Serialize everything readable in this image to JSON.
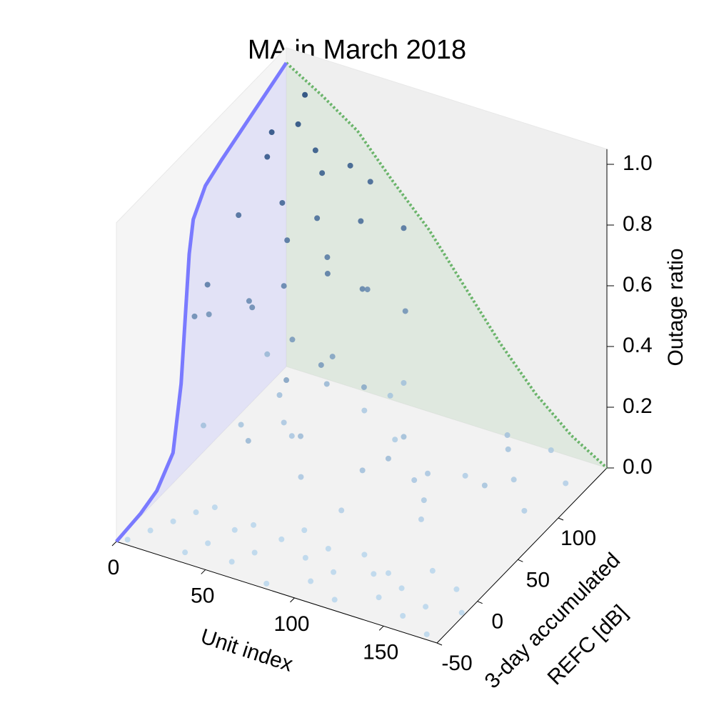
{
  "chart_data": {
    "type": "scatter3d",
    "title": "MA in March 2018",
    "xlabel": "Unit index",
    "ylabel": [
      "3-day accumulated",
      "REFC [dB]"
    ],
    "zlabel": "Outage ratio",
    "xlim": [
      0,
      180
    ],
    "ylim": [
      -50,
      160
    ],
    "zlim": [
      0,
      1.05
    ],
    "xticks": [
      0,
      50,
      100,
      150
    ],
    "yticks": [
      -50,
      0,
      50,
      100
    ],
    "zticks": [
      {
        "value": 0,
        "label": "0.0"
      },
      {
        "value": 0.2,
        "label": "0.2"
      },
      {
        "value": 0.4,
        "label": "0.4"
      },
      {
        "value": 0.6,
        "label": "0.6"
      },
      {
        "value": 0.8,
        "label": "0.8"
      },
      {
        "value": 1,
        "label": "1.0"
      }
    ],
    "colormap": [
      "#b9d6ec",
      "#08306b"
    ],
    "x": [
      4,
      10,
      16,
      22,
      28,
      34,
      40,
      46,
      52,
      58,
      64,
      70,
      76,
      82,
      88,
      94,
      100,
      106,
      112,
      118,
      124,
      130,
      136,
      142,
      148,
      154,
      160,
      166,
      172,
      178,
      8,
      20,
      35,
      50,
      62,
      75,
      90,
      105,
      118,
      130,
      145,
      160,
      12,
      28,
      44,
      58,
      72,
      86,
      100,
      115,
      128,
      140,
      155,
      170,
      40,
      65,
      95,
      125,
      150,
      175,
      2,
      5,
      10,
      15,
      20,
      25,
      30,
      35,
      40,
      45,
      50,
      55,
      60,
      65,
      70,
      75,
      80,
      85,
      3,
      8,
      12,
      18,
      24,
      30,
      36,
      42,
      48,
      54,
      60,
      66
    ],
    "y": [
      -45,
      -30,
      -15,
      0,
      10,
      -40,
      -25,
      -5,
      5,
      -35,
      -20,
      0,
      15,
      -45,
      -10,
      5,
      -30,
      -15,
      10,
      -40,
      -5,
      0,
      -25,
      -10,
      15,
      -35,
      -20,
      5,
      -45,
      -15,
      40,
      60,
      80,
      100,
      120,
      140,
      30,
      55,
      75,
      95,
      115,
      135,
      110,
      90,
      70,
      50,
      130,
      105,
      85,
      65,
      45,
      125,
      100,
      80,
      25,
      35,
      45,
      55,
      75,
      120,
      60,
      90,
      120,
      150,
      70,
      100,
      130,
      80,
      110,
      140,
      50,
      90,
      120,
      60,
      100,
      140,
      80,
      120,
      40,
      45,
      110,
      135,
      65,
      95,
      125,
      75,
      105,
      145,
      85,
      115
    ],
    "z": [
      0,
      0,
      0,
      0,
      0,
      0,
      0,
      0,
      0,
      0,
      0,
      0,
      0,
      0,
      0,
      0,
      0,
      0,
      0,
      0,
      0,
      0,
      0,
      0,
      0,
      0,
      0,
      0,
      0,
      0,
      0.15,
      0.12,
      0.1,
      0.2,
      0.08,
      0.14,
      0.05,
      0.18,
      0.1,
      0.06,
      0.12,
      0.09,
      0.2,
      0.15,
      0.1,
      0.18,
      0.12,
      0.07,
      0.16,
      0.1,
      0.05,
      0.13,
      0.08,
      0.06,
      0.2,
      0.1,
      0.15,
      0.08,
      0.12,
      0.05,
      0.45,
      0.7,
      0.9,
      0.95,
      0.5,
      0.75,
      0.85,
      0.55,
      0.7,
      0.8,
      0.35,
      0.6,
      0.7,
      0.4,
      0.55,
      0.65,
      0.3,
      0.45,
      0.5,
      0.6,
      0.85,
      0.9,
      0.5,
      0.65,
      0.8,
      0.4,
      0.6,
      0.75,
      0.35,
      0.5
    ],
    "refc_curve": {
      "color": "#7a7aff",
      "x": [
        -50,
        -20,
        0,
        20,
        30,
        35,
        40,
        45,
        60,
        80,
        120,
        160
      ],
      "values": [
        0,
        0.01,
        0.03,
        0.1,
        0.3,
        0.5,
        0.7,
        0.8,
        0.87,
        0.9,
        0.95,
        1.0
      ]
    },
    "unit_curve": {
      "color": "#6ab46a",
      "x": [
        0,
        20,
        40,
        60,
        80,
        100,
        120,
        140,
        160,
        180
      ],
      "values": [
        1.0,
        0.93,
        0.85,
        0.72,
        0.6,
        0.45,
        0.3,
        0.17,
        0.07,
        0
      ]
    }
  }
}
